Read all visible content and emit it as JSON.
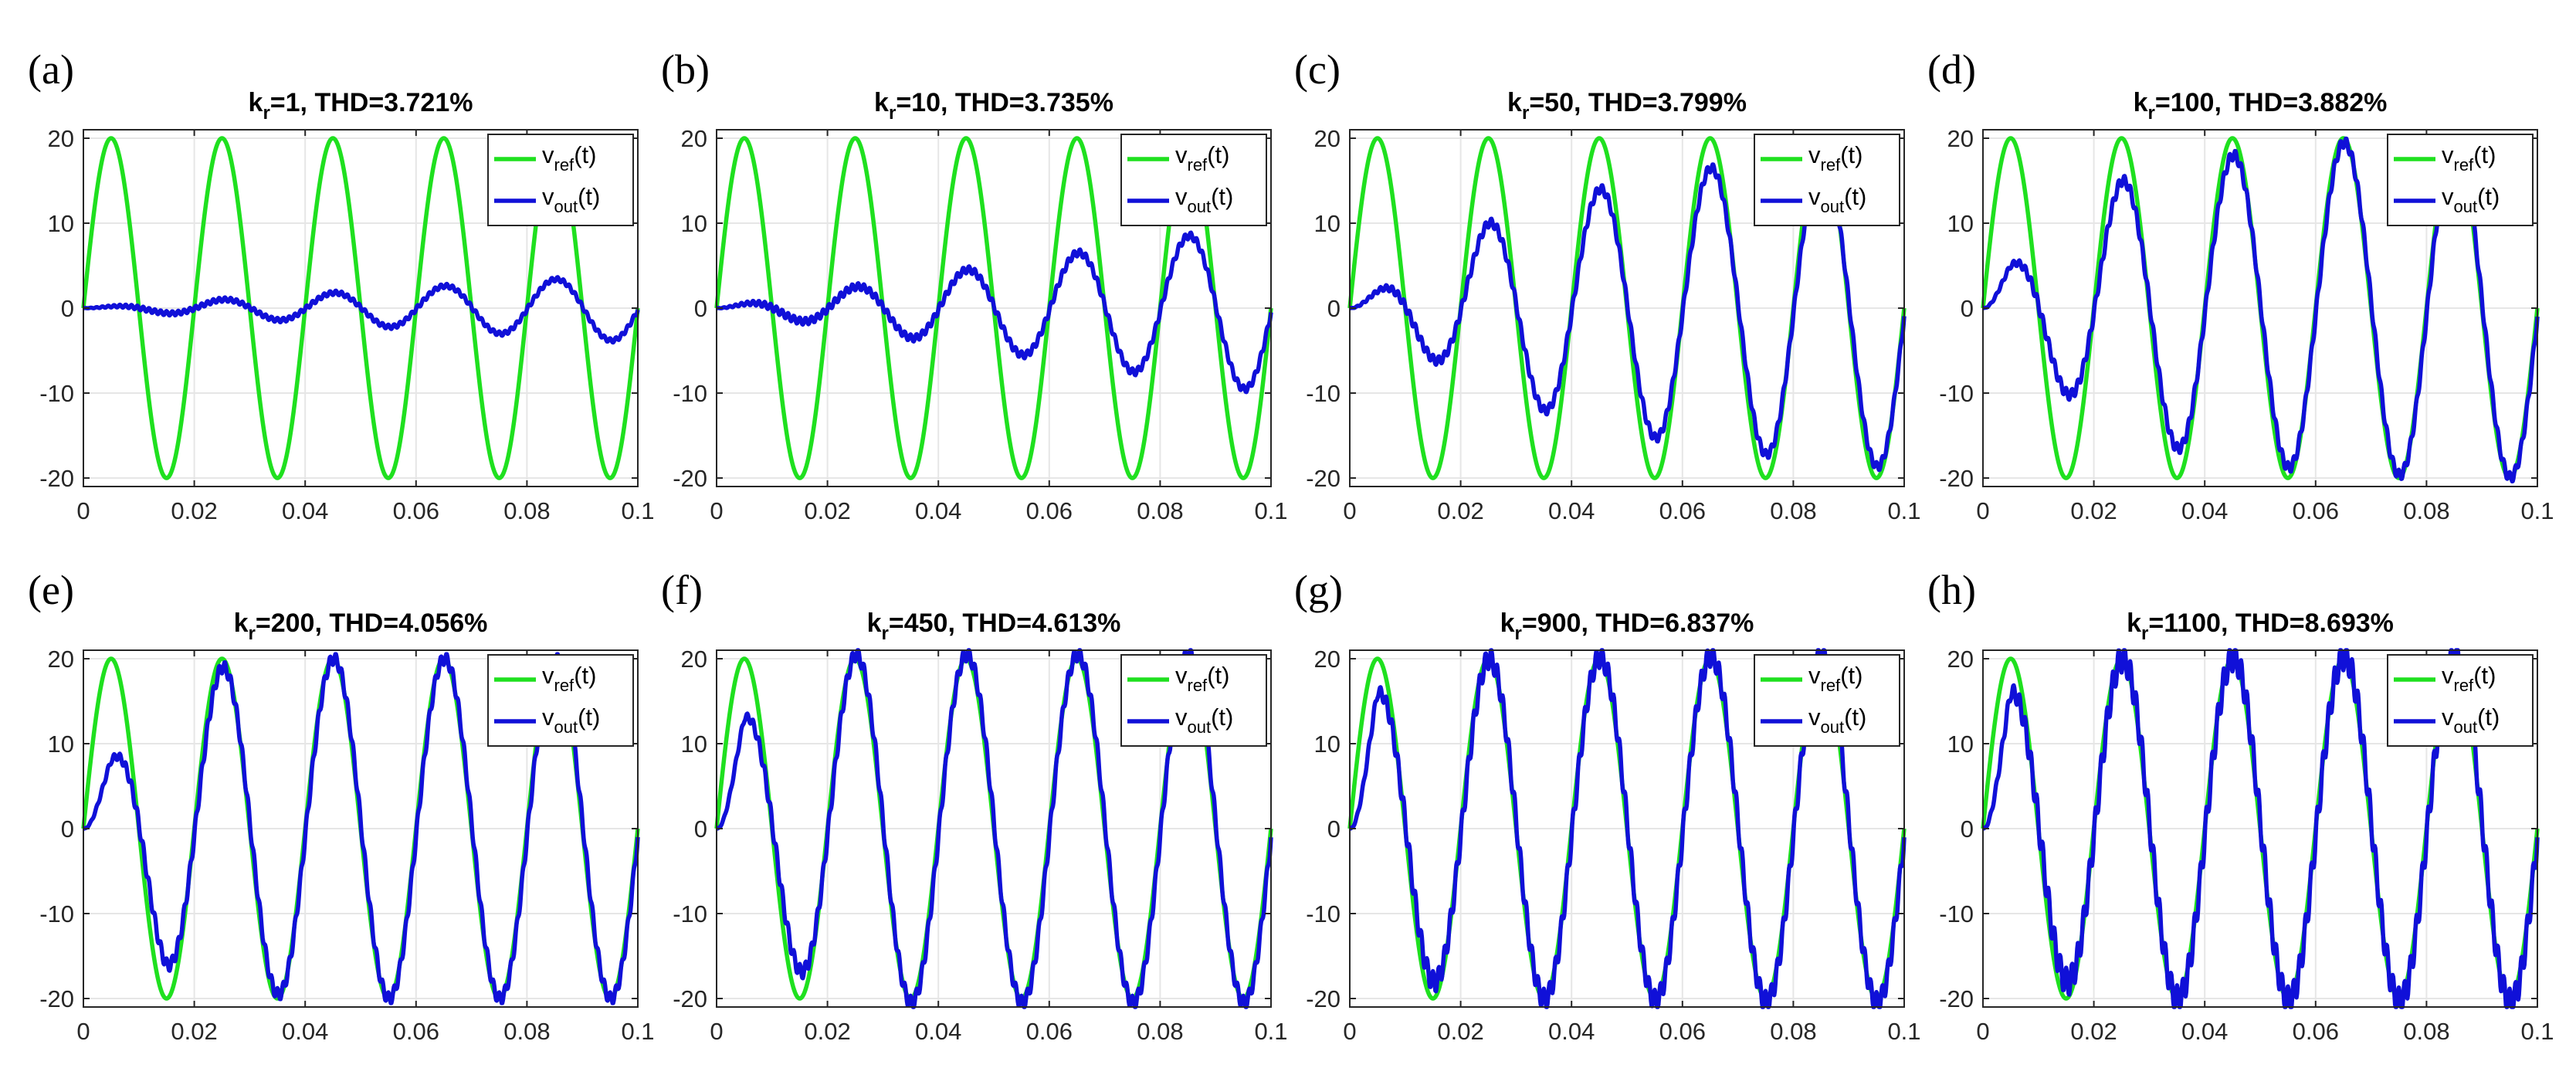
{
  "chart_data": [
    {
      "panel_label": "(a)",
      "title_main": "k",
      "title_sub": "r",
      "title_rest": "=1, THD=3.721%",
      "kr": 1,
      "thd_percent": 3.721,
      "type": "line"
    },
    {
      "panel_label": "(b)",
      "title_main": "k",
      "title_sub": "r",
      "title_rest": "=10, THD=3.735%",
      "kr": 10,
      "thd_percent": 3.735,
      "type": "line"
    },
    {
      "panel_label": "(c)",
      "title_main": "k",
      "title_sub": "r",
      "title_rest": "=50, THD=3.799%",
      "kr": 50,
      "thd_percent": 3.799,
      "type": "line"
    },
    {
      "panel_label": "(d)",
      "title_main": "k",
      "title_sub": "r",
      "title_rest": "=100, THD=3.882%",
      "kr": 100,
      "thd_percent": 3.882,
      "type": "line"
    },
    {
      "panel_label": "(e)",
      "title_main": "k",
      "title_sub": "r",
      "title_rest": "=200, THD=4.056%",
      "kr": 200,
      "thd_percent": 4.056,
      "type": "line"
    },
    {
      "panel_label": "(f)",
      "title_main": "k",
      "title_sub": "r",
      "title_rest": "=450, THD=4.613%",
      "kr": 450,
      "thd_percent": 4.613,
      "type": "line"
    },
    {
      "panel_label": "(g)",
      "title_main": "k",
      "title_sub": "r",
      "title_rest": "=900, THD=6.837%",
      "kr": 900,
      "thd_percent": 6.837,
      "type": "line"
    },
    {
      "panel_label": "(h)",
      "title_main": "k",
      "title_sub": "r",
      "title_rest": "=1100, THD=8.693%",
      "kr": 1100,
      "thd_percent": 8.693,
      "type": "line"
    }
  ],
  "shared_axes": {
    "xlim": [
      0,
      0.1
    ],
    "ylim": [
      -21,
      21
    ],
    "xticks": [
      0,
      0.02,
      0.04,
      0.06,
      0.08,
      0.1
    ],
    "xtick_labels": [
      "0",
      "0.02",
      "0.04",
      "0.06",
      "0.08",
      "0.1"
    ],
    "yticks": [
      -20,
      -10,
      0,
      10,
      20
    ],
    "ytick_labels": [
      "-20",
      "-10",
      "0",
      "10",
      "20"
    ],
    "grid": true
  },
  "series_defs": {
    "reference": {
      "name": "v_ref(t)",
      "amplitude": 20,
      "frequency_hz": 50
    },
    "output_envelope": {
      "panel_a": [
        [
          0,
          0
        ],
        [
          0.1,
          4
        ]
      ],
      "panel_b": [
        [
          0,
          0
        ],
        [
          0.1,
          10
        ]
      ],
      "panel_c": [
        [
          0,
          0
        ],
        [
          0.025,
          10
        ],
        [
          0.045,
          14
        ],
        [
          0.065,
          16.5
        ],
        [
          0.1,
          19
        ]
      ],
      "panel_d": [
        [
          0,
          0
        ],
        [
          0.005,
          5
        ],
        [
          0.025,
          15
        ],
        [
          0.045,
          18
        ],
        [
          0.065,
          19.5
        ],
        [
          0.1,
          20
        ]
      ],
      "panel_e": [
        [
          0,
          0
        ],
        [
          0.005,
          8
        ],
        [
          0.015,
          16
        ],
        [
          0.025,
          19
        ],
        [
          0.045,
          20
        ],
        [
          0.1,
          20
        ]
      ],
      "panel_f": [
        [
          0,
          0
        ],
        [
          0.005,
          13
        ],
        [
          0.025,
          20.5
        ],
        [
          0.1,
          20.5
        ]
      ],
      "panel_g": [
        [
          0,
          0
        ],
        [
          0.005,
          16
        ],
        [
          0.025,
          20
        ],
        [
          0.1,
          20.5
        ]
      ],
      "panel_h": [
        [
          0,
          0
        ],
        [
          0.005,
          16
        ],
        [
          0.025,
          20
        ],
        [
          0.1,
          20.5
        ]
      ]
    },
    "output_ripple": [
      0.25,
      0.4,
      0.5,
      0.6,
      0.7,
      0.8,
      1.2,
      1.6
    ]
  },
  "legend": {
    "ref_main": "v",
    "ref_sub": "ref",
    "ref_rest": "(t)",
    "out_main": "v",
    "out_sub": "out",
    "out_rest": "(t)",
    "position": "top-right"
  },
  "colors": {
    "reference": "#1fe01f",
    "output": "#1010d8",
    "grid": "#e6e6e6",
    "axis": "#262626"
  }
}
